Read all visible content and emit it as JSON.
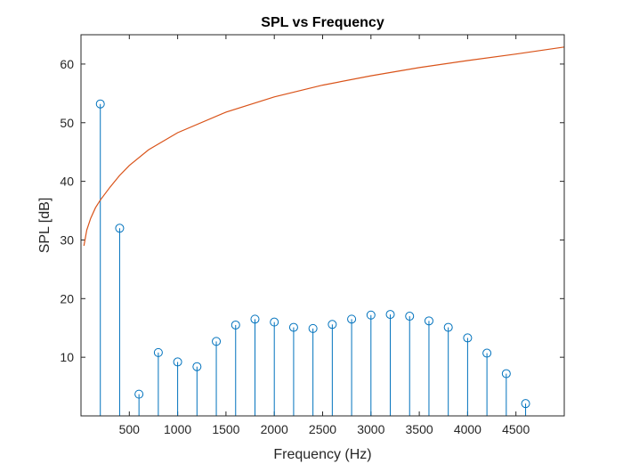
{
  "chart_data": {
    "type": "stem",
    "title": "SPL vs Frequency",
    "xlabel": "Frequency (Hz)",
    "ylabel": "SPL [dB]",
    "xlim": [
      0,
      5000
    ],
    "ylim": [
      0,
      65
    ],
    "xticks": [
      500,
      1000,
      1500,
      2000,
      2500,
      3000,
      3500,
      4000,
      4500
    ],
    "yticks": [
      10,
      20,
      30,
      40,
      50,
      60
    ],
    "grid": false,
    "series": [
      {
        "kind": "stem",
        "color": "#0072BD",
        "x": [
          200,
          400,
          600,
          800,
          1000,
          1200,
          1400,
          1600,
          1800,
          2000,
          2200,
          2400,
          2600,
          2800,
          3000,
          3200,
          3400,
          3600,
          3800,
          4000,
          4200,
          4400,
          4600
        ],
        "y": [
          53.2,
          32.0,
          3.7,
          10.8,
          9.2,
          8.4,
          12.7,
          15.5,
          16.5,
          16.0,
          15.1,
          14.9,
          15.6,
          16.5,
          17.2,
          17.3,
          17.0,
          16.2,
          15.1,
          13.3,
          10.7,
          7.2,
          2.1
        ]
      },
      {
        "kind": "line",
        "color": "#D95319",
        "x": [
          30,
          60,
          100,
          150,
          200,
          300,
          400,
          500,
          700,
          1000,
          1500,
          2000,
          2500,
          3000,
          3500,
          4000,
          4500,
          5000
        ],
        "y": [
          29.0,
          31.7,
          33.7,
          35.5,
          36.8,
          39.0,
          41.0,
          42.7,
          45.4,
          48.3,
          51.8,
          54.4,
          56.4,
          58.0,
          59.4,
          60.6,
          61.7,
          62.9
        ]
      }
    ]
  }
}
